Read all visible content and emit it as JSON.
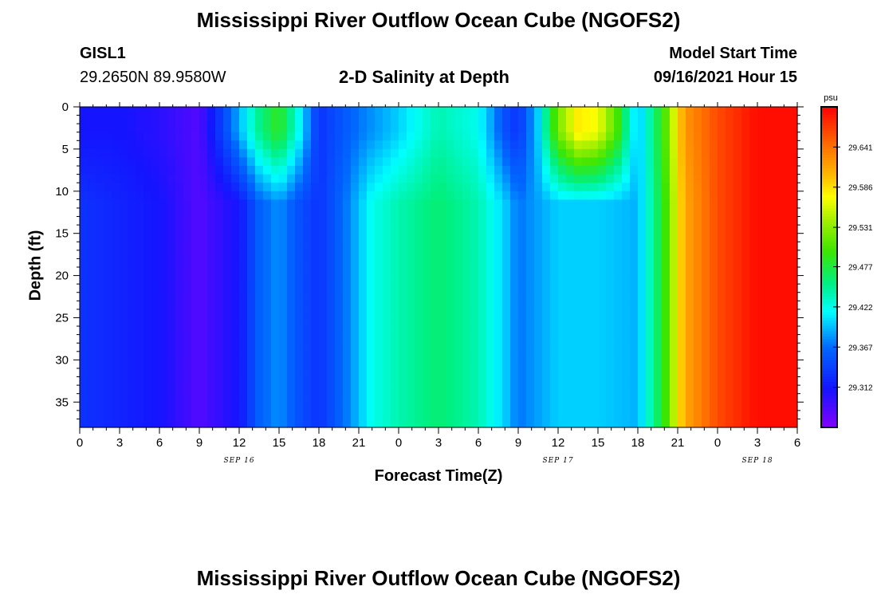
{
  "header": {
    "title": "Mississippi River Outflow Ocean Cube (NGOFS2)",
    "station": "GISL1",
    "coords": "29.2650N  89.9580W",
    "subtitle": "2-D Salinity at Depth",
    "model_label": "Model Start Time",
    "model_time": "09/16/2021 Hour 15"
  },
  "footer": {
    "title": "Mississippi River Outflow Ocean Cube (NGOFS2)"
  },
  "chart_data": {
    "type": "heatmap",
    "title": "2-D Salinity at Depth",
    "xlabel": "Forecast Time(Z)",
    "ylabel": "Depth (ft)",
    "x_hours_range": [
      0,
      54
    ],
    "x_tick_labels": [
      "0",
      "3",
      "6",
      "9",
      "12",
      "15",
      "18",
      "21",
      "0",
      "3",
      "6",
      "9",
      "12",
      "15",
      "18",
      "21",
      "0",
      "3",
      "6"
    ],
    "date_labels": [
      {
        "label": "SEP 16",
        "hour": 12
      },
      {
        "label": "SEP 17",
        "hour": 36
      },
      {
        "label": "SEP 18",
        "hour": 51
      }
    ],
    "y_range": [
      0,
      38
    ],
    "y_ticks": [
      0,
      5,
      10,
      15,
      20,
      25,
      30,
      35
    ],
    "colorbar": {
      "unit": "psu",
      "min": 29.257,
      "max": 29.696,
      "tick_values": [
        29.641,
        29.586,
        29.531,
        29.477,
        29.422,
        29.367,
        29.312
      ]
    },
    "surface_salinity_psu": [
      [
        0,
        29.31
      ],
      [
        3,
        29.31
      ],
      [
        6,
        29.3
      ],
      [
        9,
        29.28
      ],
      [
        11,
        29.35
      ],
      [
        12,
        29.39
      ],
      [
        13.5,
        29.45
      ],
      [
        15,
        29.49
      ],
      [
        16.5,
        29.42
      ],
      [
        18,
        29.33
      ],
      [
        21,
        29.37
      ],
      [
        24,
        29.4
      ],
      [
        27,
        29.44
      ],
      [
        30,
        29.42
      ],
      [
        32,
        29.35
      ],
      [
        33,
        29.33
      ],
      [
        34.5,
        29.4
      ],
      [
        36,
        29.52
      ],
      [
        37.5,
        29.58
      ],
      [
        39,
        29.57
      ],
      [
        40.5,
        29.5
      ],
      [
        42,
        29.39
      ],
      [
        44,
        29.5
      ],
      [
        45.5,
        29.62
      ],
      [
        48,
        29.66
      ],
      [
        51,
        29.69
      ],
      [
        54,
        29.69
      ]
    ],
    "deep_salinity_psu": [
      [
        0,
        29.33
      ],
      [
        3,
        29.32
      ],
      [
        6,
        29.31
      ],
      [
        9,
        29.28
      ],
      [
        12,
        29.31
      ],
      [
        13.5,
        29.36
      ],
      [
        15,
        29.38
      ],
      [
        16.5,
        29.35
      ],
      [
        18,
        29.33
      ],
      [
        20,
        29.37
      ],
      [
        22,
        29.42
      ],
      [
        24,
        29.44
      ],
      [
        27,
        29.46
      ],
      [
        30,
        29.44
      ],
      [
        32,
        29.4
      ],
      [
        33,
        29.37
      ],
      [
        36,
        29.4
      ],
      [
        39,
        29.4
      ],
      [
        42,
        29.39
      ],
      [
        44,
        29.49
      ],
      [
        45.5,
        29.61
      ],
      [
        48,
        29.66
      ],
      [
        51,
        29.69
      ],
      [
        54,
        29.69
      ]
    ]
  }
}
